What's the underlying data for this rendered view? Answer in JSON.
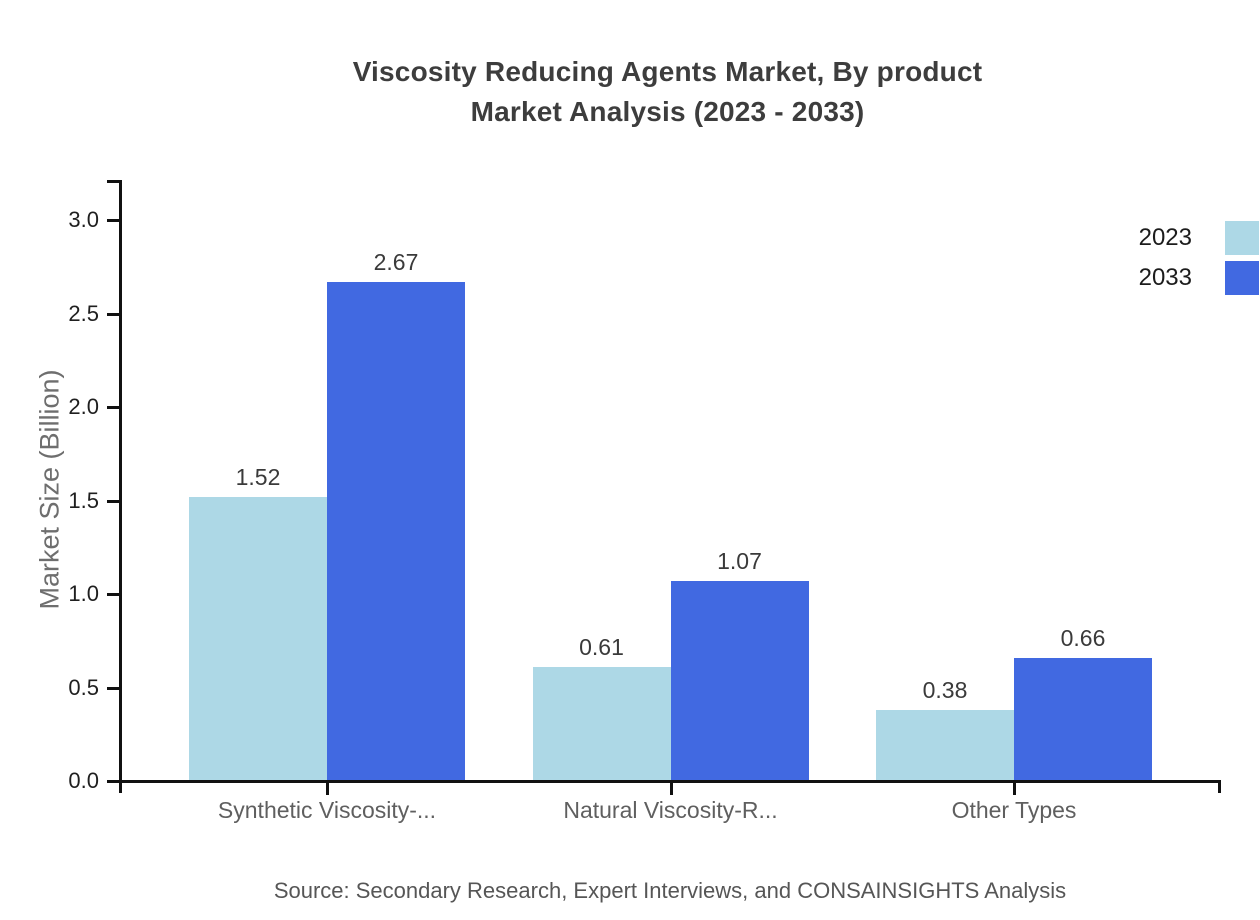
{
  "chart_data": {
    "type": "bar",
    "title_lines": [
      "Viscosity Reducing Agents Market, By product",
      "Market Analysis (2023 - 2033)"
    ],
    "title": "Viscosity Reducing Agents Market, By product Market Analysis (2023 - 2033)",
    "xlabel": "",
    "ylabel": "Market Size (Billion)",
    "categories": [
      "Synthetic Viscosity-...",
      "Natural Viscosity-R...",
      "Other Types"
    ],
    "series": [
      {
        "name": "2023",
        "color": "#ADD8E6",
        "values": [
          1.52,
          0.61,
          0.38
        ]
      },
      {
        "name": "2033",
        "color": "#4169E1",
        "values": [
          2.67,
          1.07,
          0.66
        ]
      }
    ],
    "yticks": [
      0.0,
      0.5,
      1.0,
      1.5,
      2.0,
      2.5,
      3.0
    ],
    "ylim": [
      0,
      3.2
    ],
    "grid": false,
    "legend_position": "top-right-outside",
    "value_label_format": "2-decimals",
    "source": "Source: Secondary Research, Expert Interviews, and CONSAINSIGHTS Analysis"
  },
  "colors": {
    "background": "#ffffff",
    "axis": "#111111",
    "title_text": "#3d3d3d",
    "tick_label_text": "#1f1f1f",
    "category_label_text": "#5f5f5f",
    "y_axis_title_text": "#6e6e6e",
    "value_label_text": "#3a3a3a",
    "legend_text": "#1c1c1c",
    "series_2023": "#ADD8E6",
    "series_2033": "#4169E1"
  }
}
